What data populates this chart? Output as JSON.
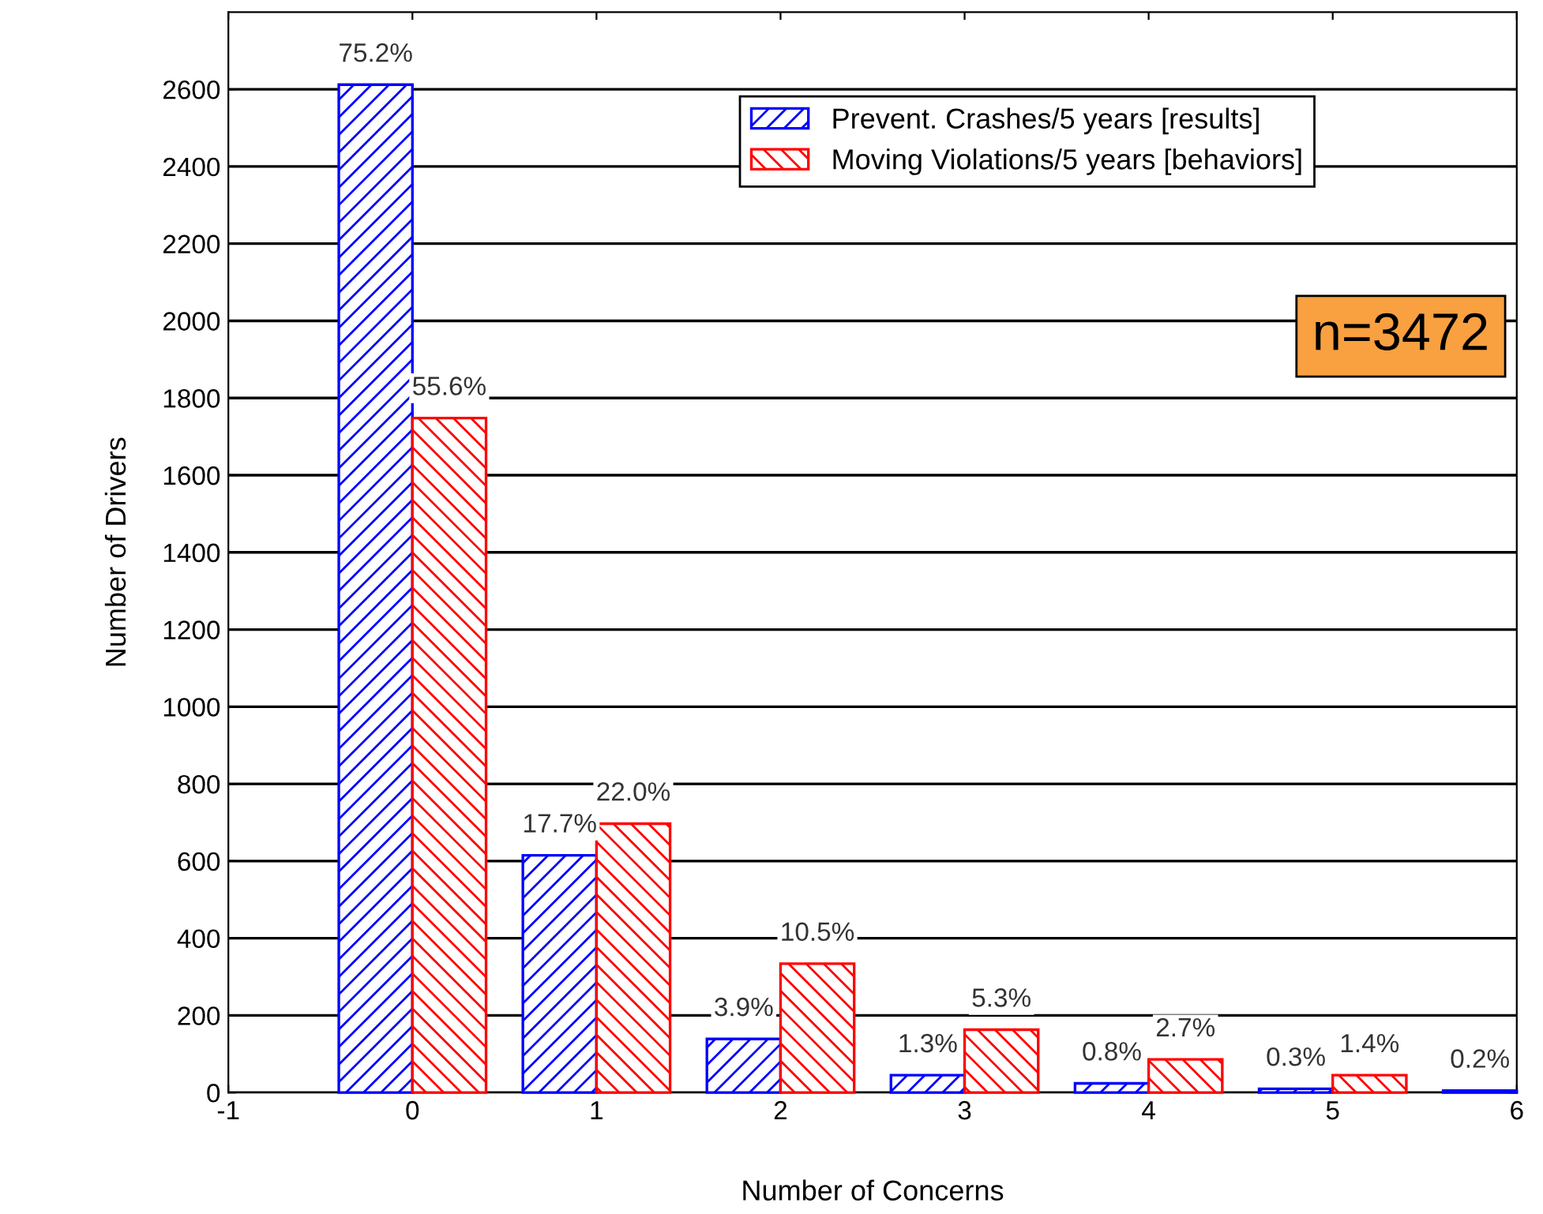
{
  "chart_data": {
    "type": "bar",
    "xlabel": "Number of Concerns",
    "ylabel": "Number of Drivers",
    "xlim": [
      -1,
      6
    ],
    "xticks": [
      -1,
      0,
      1,
      2,
      3,
      4,
      5,
      6
    ],
    "ylim": [
      0,
      2800
    ],
    "yticks": [
      0,
      200,
      400,
      600,
      800,
      1000,
      1200,
      1400,
      1600,
      1800,
      2000,
      2200,
      2400,
      2600
    ],
    "grid": "y",
    "legend": "top",
    "series": [
      {
        "name": "Prevent. Crashes/5 years [results]",
        "color": "#0000ff",
        "x": [
          0,
          1,
          2,
          3,
          4,
          5,
          6
        ],
        "values": [
          2612,
          615,
          139,
          45,
          24,
          10,
          5
        ]
      },
      {
        "name": "Moving Violations/5 years [behaviors]",
        "color": "#ff0000",
        "x": [
          0,
          1,
          2,
          3,
          4,
          5
        ],
        "values": [
          1748,
          697,
          334,
          163,
          86,
          45
        ]
      }
    ],
    "annotations": [
      {
        "text": "75.2%",
        "x": -0.2,
        "y": 2612
      },
      {
        "text": "17.7%",
        "x": 0.8,
        "y": 615
      },
      {
        "text": "3.9%",
        "x": 1.8,
        "y": 139
      },
      {
        "text": "1.3%",
        "x": 2.8,
        "y": 45
      },
      {
        "text": "0.8%",
        "x": 3.8,
        "y": 24
      },
      {
        "text": "0.3%",
        "x": 4.8,
        "y": 10
      },
      {
        "text": "0.2%",
        "x": 5.8,
        "y": 5
      },
      {
        "text": "55.6%",
        "x": 0.2,
        "y": 1748
      },
      {
        "text": "22.0%",
        "x": 1.2,
        "y": 697
      },
      {
        "text": "10.5%",
        "x": 2.2,
        "y": 334
      },
      {
        "text": "5.3%",
        "x": 3.2,
        "y": 163
      },
      {
        "text": "2.7%",
        "x": 4.2,
        "y": 86
      },
      {
        "text": "1.4%",
        "x": 5.2,
        "y": 45
      },
      "n=3472"
    ]
  }
}
